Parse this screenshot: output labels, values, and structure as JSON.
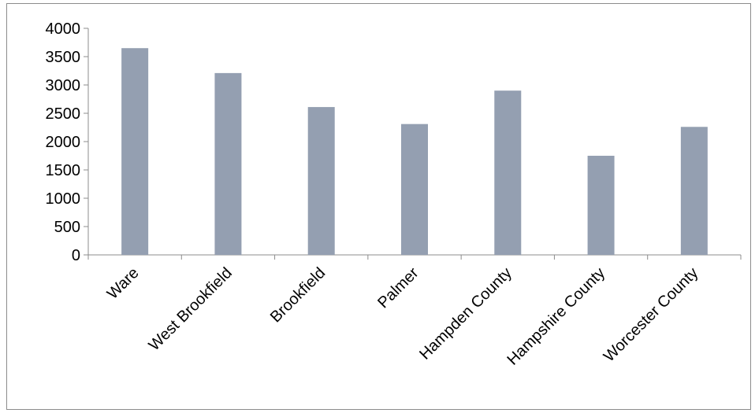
{
  "chart_data": {
    "type": "bar",
    "title": "",
    "xlabel": "",
    "ylabel": "",
    "categories": [
      "Ware",
      "West Brookfield",
      "Brookfield",
      "Palmer",
      "Hampden County",
      "Hampshire County",
      "Worcester County"
    ],
    "values": [
      3650,
      3210,
      2610,
      2310,
      2900,
      1750,
      2260
    ],
    "ylim": [
      0,
      4000
    ],
    "yticks": [
      0,
      500,
      1000,
      1500,
      2000,
      2500,
      3000,
      3500,
      4000
    ],
    "grid": false,
    "legend": "none",
    "bar_color": "#949fb1",
    "axis_color": "#8c8c8c"
  }
}
